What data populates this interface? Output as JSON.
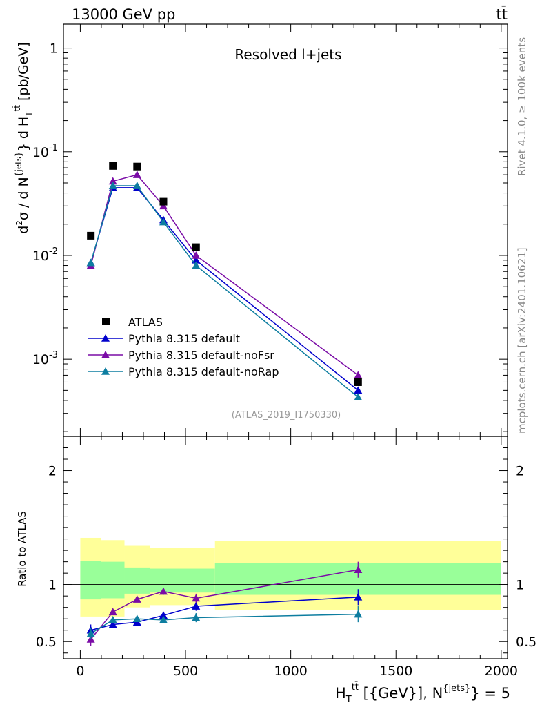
{
  "header": {
    "energy_label": "13000 GeV pp",
    "process_label": "tt̄",
    "rivet_label": "Rivet 4.1.0, ≥ 100k events",
    "mcplots_label": "mcplots.cern.ch [arXiv:2401.10621]"
  },
  "chart_data": [
    {
      "type": "line",
      "panel": "main",
      "title": "Resolved l+jets",
      "analysis_tag": "(ATLAS_2019_I1750330)",
      "ylabel_main": "d²σ / d N^{jets} d H_T^{tt̄} [pb/GeV]",
      "yscale": "log",
      "xlim": [
        -80,
        2030
      ],
      "ylim": [
        0.00018,
        1.7
      ],
      "ytick_labels": [
        "1",
        "10^-1",
        "10^-2",
        "10^-3"
      ],
      "legend_position": "lower-left",
      "x": [
        50,
        155,
        270,
        395,
        550,
        1320
      ],
      "data": {
        "name": "ATLAS",
        "color": "#000000",
        "values": [
          0.0155,
          0.073,
          0.072,
          0.033,
          0.012,
          0.0006
        ]
      },
      "series": [
        {
          "name": "Pythia 8.315 default",
          "color": "#0000cc",
          "values": [
            0.0085,
            0.045,
            0.045,
            0.022,
            0.009,
            0.0005
          ]
        },
        {
          "name": "Pythia 8.315 default-noFsr",
          "color": "#7a0ba6",
          "values": [
            0.008,
            0.052,
            0.06,
            0.03,
            0.01,
            0.0007
          ]
        },
        {
          "name": "Pythia 8.315 default-noRap",
          "color": "#0d7da0",
          "values": [
            0.0085,
            0.047,
            0.047,
            0.021,
            0.008,
            0.00043
          ]
        }
      ]
    },
    {
      "type": "line",
      "panel": "ratio",
      "ylabel": "Ratio to ATLAS",
      "xlabel": "H_T^{tt̄} [{GeV}], N^{jets} = 5",
      "xlim": [
        -80,
        2030
      ],
      "ylim": [
        0.35,
        2.3
      ],
      "xtick_labels": [
        "0",
        "500",
        "1000",
        "1500",
        "2000"
      ],
      "ytick_labels": [
        "0.5",
        "1",
        "2"
      ],
      "reference_line": 1.0,
      "bin_edges": [
        0,
        100,
        210,
        330,
        460,
        640,
        2000
      ],
      "band_yellow": [
        [
          0.72,
          1.41
        ],
        [
          0.72,
          1.39
        ],
        [
          0.8,
          1.34
        ],
        [
          0.82,
          1.32
        ],
        [
          0.82,
          1.32
        ],
        [
          0.78,
          1.38
        ]
      ],
      "band_green": [
        [
          0.87,
          1.21
        ],
        [
          0.88,
          1.2
        ],
        [
          0.92,
          1.15
        ],
        [
          0.93,
          1.14
        ],
        [
          0.93,
          1.14
        ],
        [
          0.91,
          1.19
        ]
      ],
      "x": [
        50,
        155,
        270,
        395,
        550,
        1320
      ],
      "series": [
        {
          "name": "Pythia 8.315 default",
          "color": "#0000cc",
          "values": [
            0.6,
            0.65,
            0.67,
            0.73,
            0.81,
            0.89
          ],
          "errors": [
            0.05,
            0.02,
            0.02,
            0.03,
            0.04,
            0.07
          ]
        },
        {
          "name": "Pythia 8.315 default-noFsr",
          "color": "#7a0ba6",
          "values": [
            0.52,
            0.76,
            0.87,
            0.94,
            0.88,
            1.13
          ],
          "errors": [
            0.06,
            0.02,
            0.02,
            0.03,
            0.04,
            0.07
          ]
        },
        {
          "name": "Pythia 8.315 default-noRap",
          "color": "#0d7da0",
          "values": [
            0.57,
            0.69,
            0.7,
            0.69,
            0.71,
            0.74
          ],
          "errors": [
            0.05,
            0.02,
            0.02,
            0.03,
            0.04,
            0.07
          ]
        }
      ]
    }
  ]
}
